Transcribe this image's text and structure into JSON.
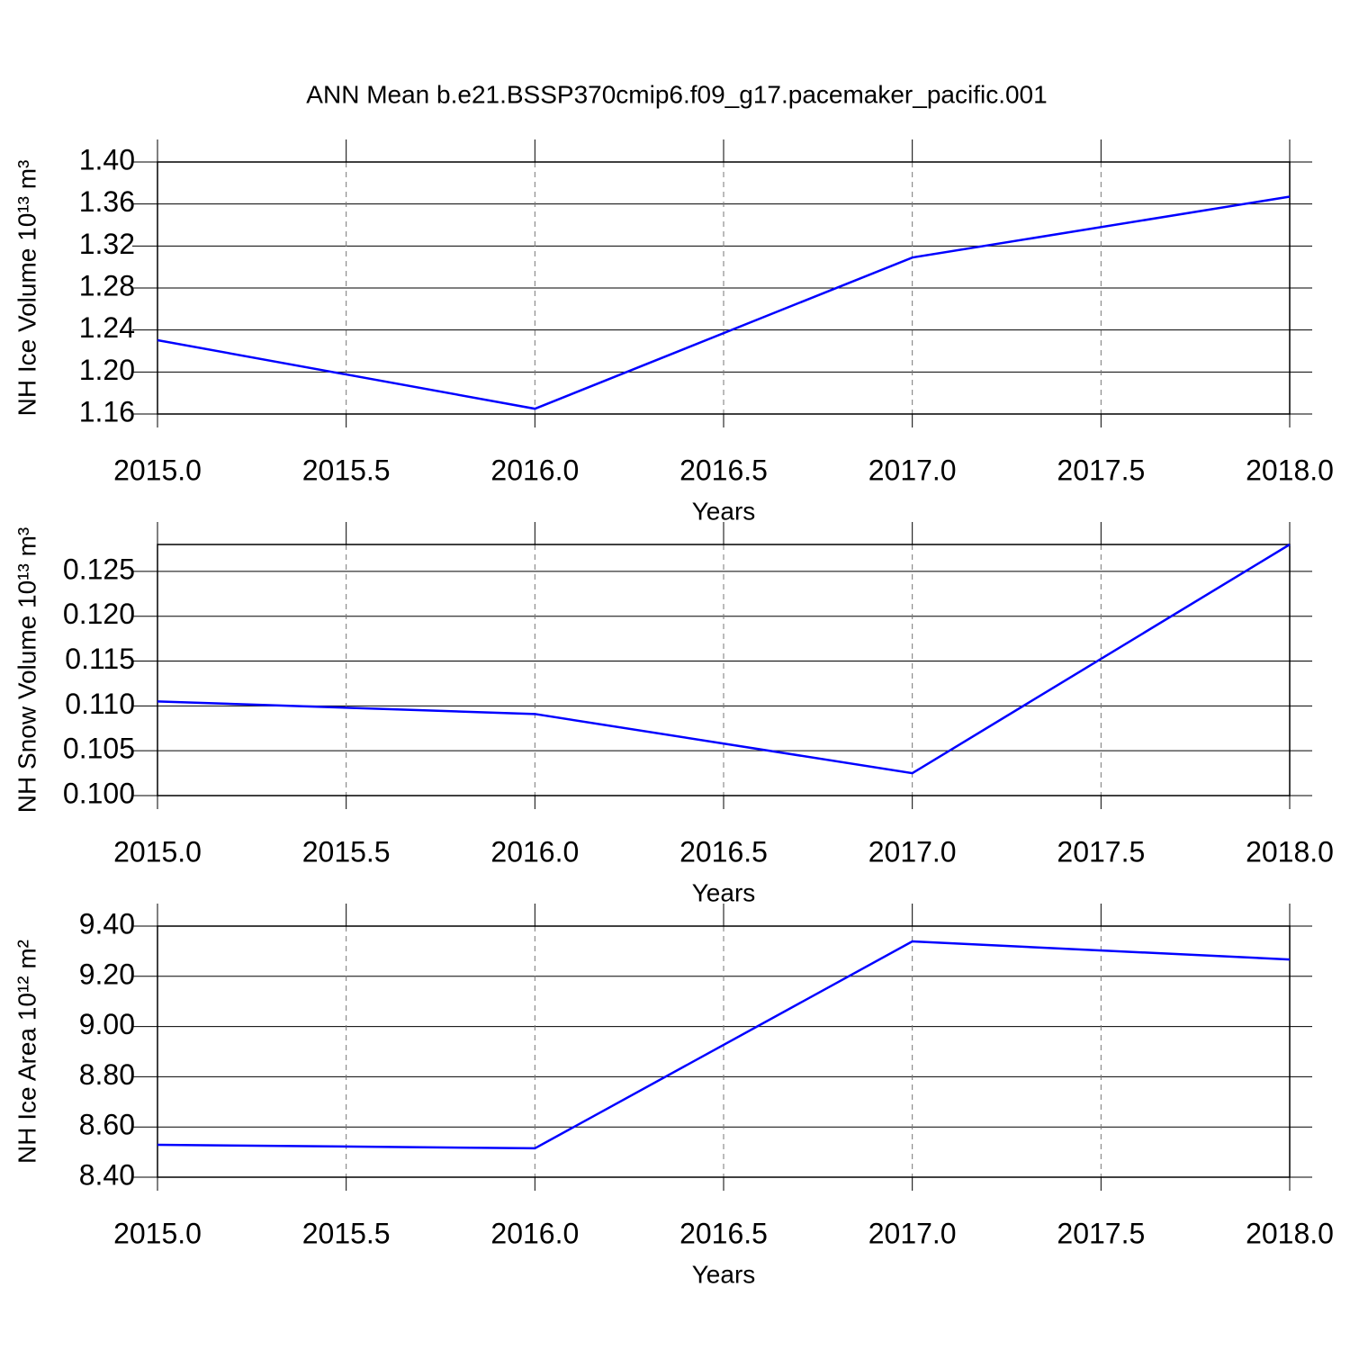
{
  "chart_data": [
    {
      "type": "line",
      "title": "ANN Mean b.e21.BSSP370cmip6.f09_g17.pacemaker_pacific.001",
      "ylabel": "NH Ice Volume 10¹³ m³",
      "xlabel": "Years",
      "x": [
        2015,
        2016,
        2017,
        2018
      ],
      "values": [
        1.2303,
        1.165,
        1.309,
        1.367
      ],
      "color": "#0000ff",
      "xlim": [
        2015,
        2018
      ],
      "ylim": [
        1.16,
        1.4
      ],
      "xticks": [
        {
          "value": 2015,
          "label": "2015.0"
        },
        {
          "value": 2015.5,
          "label": "2015.5"
        },
        {
          "value": 2016,
          "label": "2016.0"
        },
        {
          "value": 2016.5,
          "label": "2016.5"
        },
        {
          "value": 2017,
          "label": "2017.0"
        },
        {
          "value": 2017.5,
          "label": "2017.5"
        },
        {
          "value": 2018,
          "label": "2018.0"
        }
      ],
      "yticks": [
        {
          "value": 1.16,
          "label": "1.16"
        },
        {
          "value": 1.2,
          "label": "1.20"
        },
        {
          "value": 1.24,
          "label": "1.24"
        },
        {
          "value": 1.28,
          "label": "1.28"
        },
        {
          "value": 1.32,
          "label": "1.32"
        },
        {
          "value": 1.36,
          "label": "1.36"
        },
        {
          "value": 1.4,
          "label": "1.40"
        }
      ],
      "grid": true
    },
    {
      "type": "line",
      "ylabel": "NH Snow Volume 10¹³ m³",
      "xlabel": "Years",
      "x": [
        2015,
        2016,
        2017,
        2018
      ],
      "values": [
        0.1105,
        0.1091,
        0.1025,
        0.128
      ],
      "color": "#0000ff",
      "xlim": [
        2015,
        2018
      ],
      "ylim": [
        0.1,
        0.128
      ],
      "xticks": [
        {
          "value": 2015,
          "label": "2015.0"
        },
        {
          "value": 2015.5,
          "label": "2015.5"
        },
        {
          "value": 2016,
          "label": "2016.0"
        },
        {
          "value": 2016.5,
          "label": "2016.5"
        },
        {
          "value": 2017,
          "label": "2017.0"
        },
        {
          "value": 2017.5,
          "label": "2017.5"
        },
        {
          "value": 2018,
          "label": "2018.0"
        }
      ],
      "yticks": [
        {
          "value": 0.1,
          "label": "0.100"
        },
        {
          "value": 0.105,
          "label": "0.105"
        },
        {
          "value": 0.11,
          "label": "0.110"
        },
        {
          "value": 0.115,
          "label": "0.115"
        },
        {
          "value": 0.12,
          "label": "0.120"
        },
        {
          "value": 0.125,
          "label": "0.125"
        }
      ],
      "grid": true
    },
    {
      "type": "line",
      "ylabel": "NH Ice Area 10¹² m²",
      "xlabel": "Years",
      "x": [
        2015,
        2016,
        2017,
        2018
      ],
      "values": [
        8.529,
        8.515,
        9.339,
        9.267
      ],
      "color": "#0000ff",
      "xlim": [
        2015,
        2018
      ],
      "ylim": [
        8.4,
        9.4
      ],
      "xticks": [
        {
          "value": 2015,
          "label": "2015.0"
        },
        {
          "value": 2015.5,
          "label": "2015.5"
        },
        {
          "value": 2016,
          "label": "2016.0"
        },
        {
          "value": 2016.5,
          "label": "2016.5"
        },
        {
          "value": 2017,
          "label": "2017.0"
        },
        {
          "value": 2017.5,
          "label": "2017.5"
        },
        {
          "value": 2018,
          "label": "2018.0"
        }
      ],
      "yticks": [
        {
          "value": 8.4,
          "label": "8.40"
        },
        {
          "value": 8.6,
          "label": "8.60"
        },
        {
          "value": 8.8,
          "label": "8.80"
        },
        {
          "value": 9.0,
          "label": "9.00"
        },
        {
          "value": 9.2,
          "label": "9.20"
        },
        {
          "value": 9.4,
          "label": "9.40"
        }
      ],
      "grid": true
    }
  ]
}
